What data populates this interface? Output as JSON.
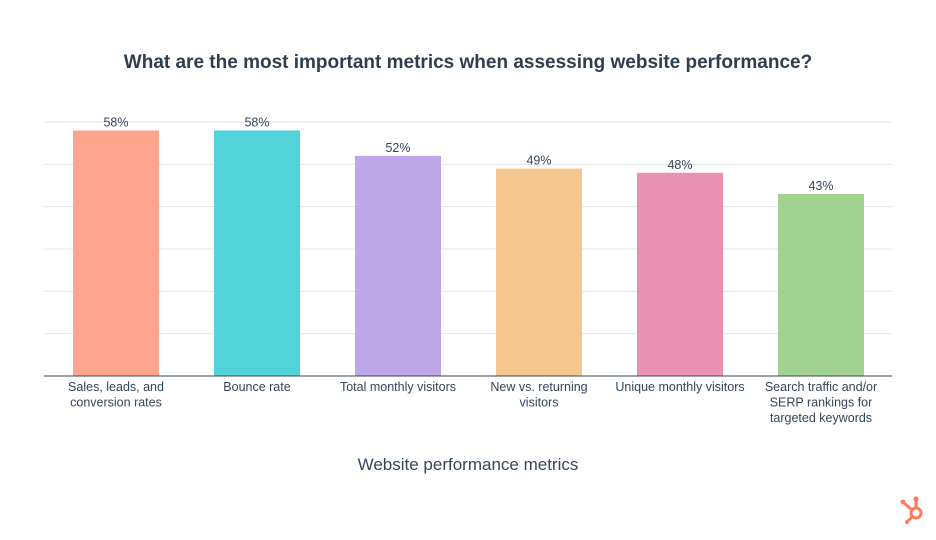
{
  "chart_data": {
    "type": "bar",
    "title": "What are the most important metrics when assessing website performance?",
    "xlabel": "Website performance metrics",
    "ylabel": "",
    "ylim": [
      0,
      60
    ],
    "grid": true,
    "gridline_step": 10,
    "categories": [
      [
        "Sales, leads, and",
        "conversion rates"
      ],
      [
        "Bounce rate"
      ],
      [
        "Total monthly visitors"
      ],
      [
        "New vs. returning",
        "visitors"
      ],
      [
        "Unique monthly visitors"
      ],
      [
        "Search traffic and/or",
        "SERP rankings for",
        "targeted keywords"
      ]
    ],
    "values": [
      58,
      58,
      52,
      49,
      48,
      43
    ],
    "labels": [
      "58%",
      "58%",
      "52%",
      "49%",
      "48%",
      "43%"
    ],
    "colors": [
      "#fea58e",
      "#51d3d9",
      "#bea7e9",
      "#f5c78e",
      "#ea90b1",
      "#a2d28f"
    ]
  },
  "brand": {
    "logo": "HubSpot sprocket",
    "color": "#ff7a59"
  }
}
